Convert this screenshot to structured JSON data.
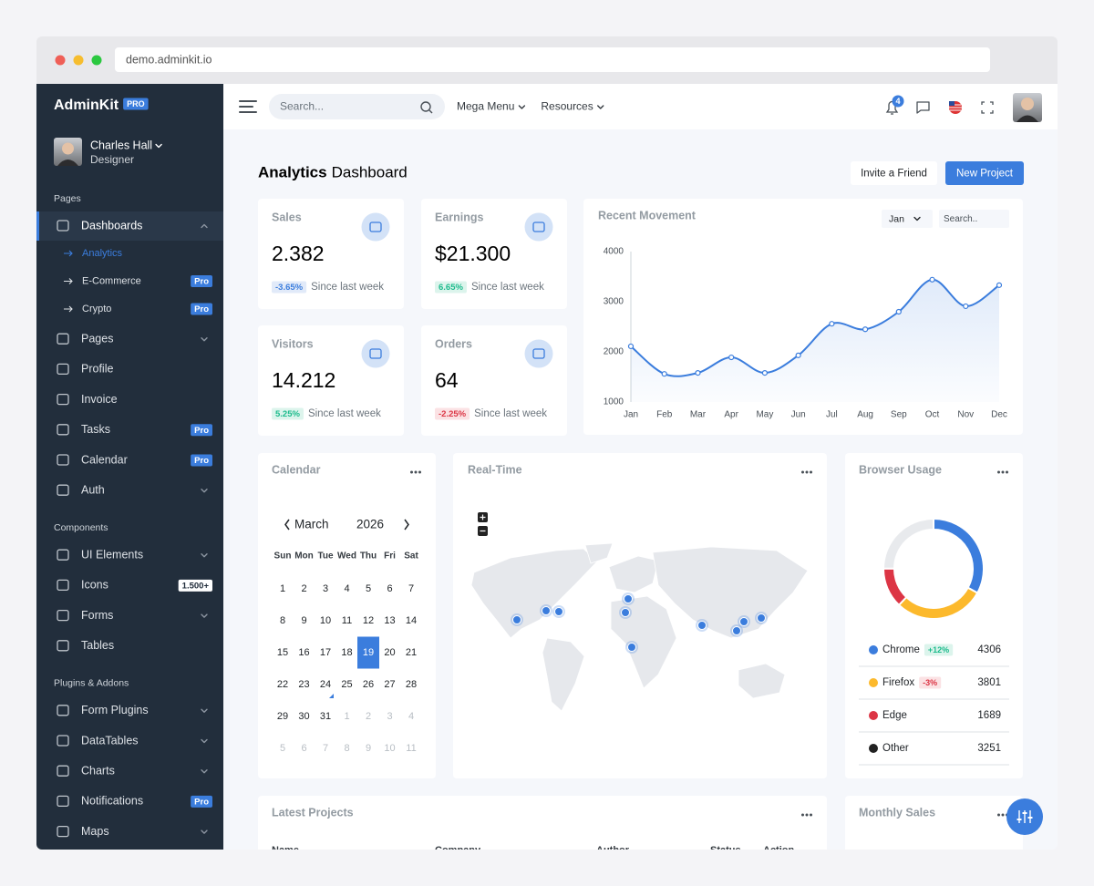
{
  "browser": {
    "url": "demo.adminkit.io"
  },
  "sidebar": {
    "brand": "AdminKit",
    "brand_badge": "PRO",
    "user": {
      "name": "Charles Hall",
      "role": "Designer"
    },
    "sections": [
      {
        "title": "Pages",
        "items": [
          {
            "label": "Dashboards",
            "active": true,
            "expanded": true,
            "children": [
              {
                "label": "Analytics",
                "active": true
              },
              {
                "label": "E-Commerce",
                "badge": "Pro"
              },
              {
                "label": "Crypto",
                "badge": "Pro"
              }
            ]
          },
          {
            "label": "Pages",
            "chevron": true
          },
          {
            "label": "Profile"
          },
          {
            "label": "Invoice"
          },
          {
            "label": "Tasks",
            "badge": "Pro"
          },
          {
            "label": "Calendar",
            "badge": "Pro"
          },
          {
            "label": "Auth",
            "chevron": true
          }
        ]
      },
      {
        "title": "Components",
        "items": [
          {
            "label": "UI Elements",
            "chevron": true
          },
          {
            "label": "Icons",
            "badge": "1.500+",
            "badge_style": "light"
          },
          {
            "label": "Forms",
            "chevron": true
          },
          {
            "label": "Tables"
          }
        ]
      },
      {
        "title": "Plugins & Addons",
        "items": [
          {
            "label": "Form Plugins",
            "chevron": true
          },
          {
            "label": "DataTables",
            "chevron": true
          },
          {
            "label": "Charts",
            "chevron": true
          },
          {
            "label": "Notifications",
            "badge": "Pro"
          },
          {
            "label": "Maps",
            "chevron": true
          }
        ]
      }
    ]
  },
  "topbar": {
    "search_placeholder": "Search...",
    "menus": [
      "Mega Menu",
      "Resources"
    ],
    "notifications": 4
  },
  "header": {
    "title_bold": "Analytics",
    "title_rest": "Dashboard",
    "buttons": [
      "Invite a Friend",
      "New Project"
    ]
  },
  "stats": [
    {
      "title": "Sales",
      "value": "2.382",
      "change": "-3.65%",
      "change_color": "blue",
      "note": "Since last week"
    },
    {
      "title": "Earnings",
      "value": "$21.300",
      "change": "6.65%",
      "change_color": "green",
      "note": "Since last week"
    },
    {
      "title": "Visitors",
      "value": "14.212",
      "change": "5.25%",
      "change_color": "green",
      "note": "Since last week"
    },
    {
      "title": "Orders",
      "value": "64",
      "change": "-2.25%",
      "change_color": "red",
      "note": "Since last week"
    }
  ],
  "recent_movement": {
    "title": "Recent Movement",
    "filter": "Jan",
    "search_placeholder": "Search..",
    "type": "line",
    "color": "#3b7ddd",
    "grid": false,
    "categories": [
      "Jan",
      "Feb",
      "Mar",
      "Apr",
      "May",
      "Jun",
      "Jul",
      "Aug",
      "Sep",
      "Oct",
      "Nov",
      "Dec"
    ],
    "values": [
      2110,
      1560,
      1580,
      1890,
      1580,
      1930,
      2560,
      2450,
      2800,
      3440,
      2910,
      3330
    ],
    "ylim": [
      1000,
      4000
    ],
    "yticks": [
      1000,
      2000,
      3000,
      4000
    ]
  },
  "calendar": {
    "title": "Calendar",
    "month": "March",
    "year": 2026,
    "weekdays": [
      "Sun",
      "Mon",
      "Tue",
      "Wed",
      "Thu",
      "Fri",
      "Sat"
    ],
    "weeks": [
      [
        1,
        2,
        3,
        4,
        5,
        6,
        7
      ],
      [
        8,
        9,
        10,
        11,
        12,
        13,
        14
      ],
      [
        15,
        16,
        17,
        18,
        19,
        20,
        21
      ],
      [
        22,
        23,
        24,
        25,
        26,
        27,
        28
      ],
      [
        29,
        30,
        31,
        1,
        2,
        3,
        4
      ],
      [
        5,
        6,
        7,
        8,
        9,
        10,
        11
      ]
    ],
    "selected": 19,
    "today": 24
  },
  "realtime": {
    "title": "Real-Time"
  },
  "browser_usage": {
    "title": "Browser Usage",
    "type": "doughnut",
    "items": [
      {
        "name": "Chrome",
        "value": 4306,
        "color": "#3b7ddd",
        "legend_color": "#3b7ddd",
        "badge": "+12%",
        "badge_color": "green"
      },
      {
        "name": "Firefox",
        "value": 3801,
        "color": "#fcb92c",
        "legend_color": "#fcb92c",
        "badge": "-3%",
        "badge_color": "red"
      },
      {
        "name": "Edge",
        "value": 1689,
        "color": "#dc3545",
        "legend_color": "#dc3545"
      },
      {
        "name": "Other",
        "value": 3251,
        "color": "#e8eaed",
        "legend_color": "#222222"
      }
    ]
  },
  "latest_projects": {
    "title": "Latest Projects",
    "columns": [
      "Name",
      "Company",
      "Author",
      "Status",
      "Action"
    ]
  },
  "monthly_sales": {
    "title": "Monthly Sales"
  }
}
